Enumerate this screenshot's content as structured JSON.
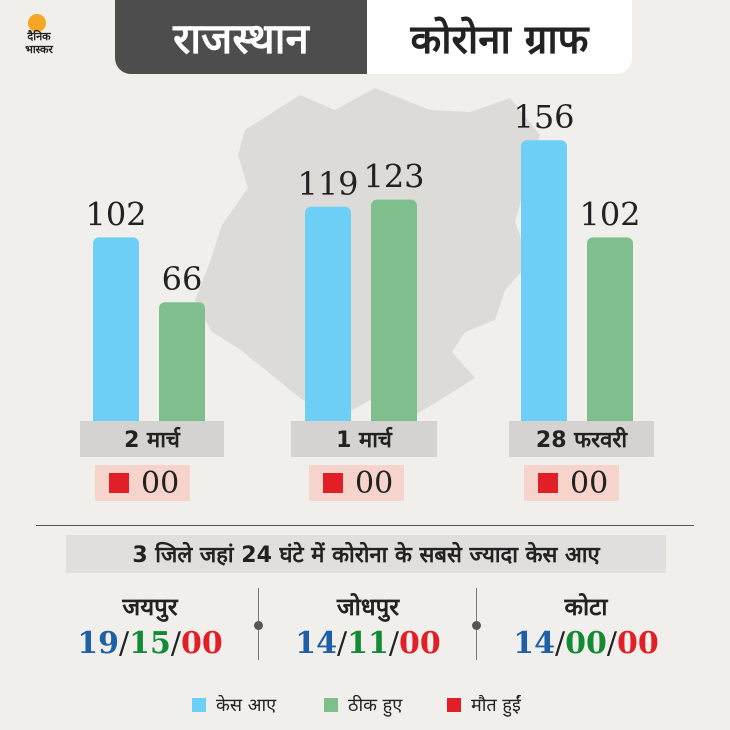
{
  "logo": {
    "line1": "दैनिक",
    "line2": "भास्कर"
  },
  "title": {
    "left": "राजस्थान",
    "right": "कोरोना ग्राफ"
  },
  "colors": {
    "cases": "#6dcff6",
    "recovered": "#7fbf8e",
    "deaths": "#e11f26",
    "title_bg": "#4d4d4d"
  },
  "chart_data": {
    "type": "bar",
    "categories": [
      "2 मार्च",
      "1 मार्च",
      "28 फरवरी"
    ],
    "series": [
      {
        "name": "केस आए",
        "values": [
          102,
          119,
          156
        ]
      },
      {
        "name": "ठीक हुए",
        "values": [
          66,
          123,
          102
        ]
      },
      {
        "name": "मौत हुईं",
        "values": [
          "00",
          "00",
          "00"
        ]
      }
    ],
    "value_labels": {
      "cases": [
        "102",
        "119",
        "156"
      ],
      "recovered": [
        "66",
        "123",
        "102"
      ],
      "deaths": [
        "00",
        "00",
        "00"
      ]
    },
    "ylim": [
      0,
      160
    ],
    "grid": false,
    "legend": "bottom"
  },
  "subheading": "3 जिले जहां 24 घंटे में कोरोना के सबसे ज्यादा केस आए",
  "districts": [
    {
      "name": "जयपुर",
      "cases": "19",
      "recovered": "15",
      "deaths": "00"
    },
    {
      "name": "जोधपुर",
      "cases": "14",
      "recovered": "11",
      "deaths": "00"
    },
    {
      "name": "कोटा",
      "cases": "14",
      "recovered": "00",
      "deaths": "00"
    }
  ],
  "legend": {
    "cases": "केस आए",
    "recovered": "ठीक हुए",
    "deaths": "मौत हुईं"
  }
}
